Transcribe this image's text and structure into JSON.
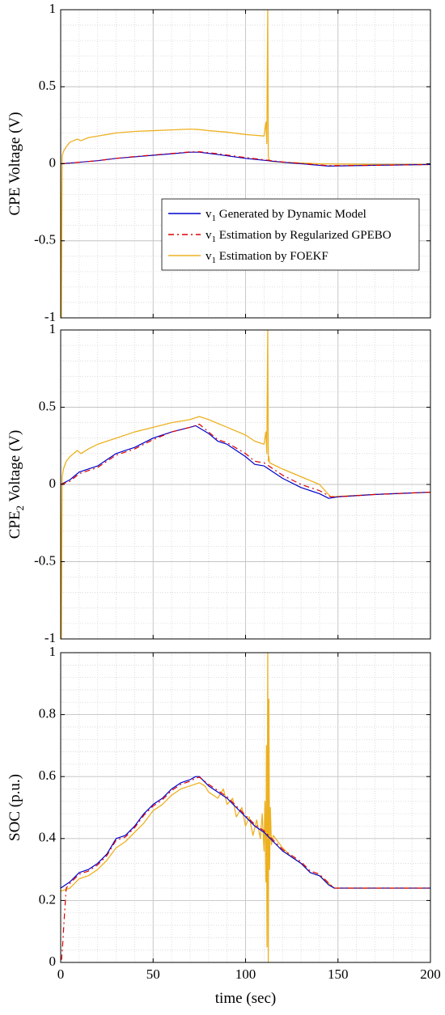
{
  "colors": {
    "model": "#0000cc",
    "gpebo": "#dd0000",
    "foekf": "#edb120",
    "grid": "#d4d4d4",
    "axis": "#000000"
  },
  "chart_data": [
    {
      "type": "line",
      "ylabel": "CPE Voltage (V)",
      "ylabel_sub": "",
      "ylabel_tail": "",
      "xlim": [
        0,
        200
      ],
      "ylim": [
        -1,
        1
      ],
      "yticks": [
        -1,
        -0.5,
        0,
        0.5,
        1
      ],
      "ytick_labels": [
        "-1",
        "-0.5",
        "0",
        "0.5",
        "1"
      ],
      "xticks": [
        0,
        50,
        100,
        150,
        200
      ],
      "xtick_labels": [],
      "grid": "on",
      "legend": {
        "placement": "center-right",
        "entries": [
          {
            "main": "v",
            "sub": "1",
            "rest": " Generated by Dynamic Model",
            "series": 0
          },
          {
            "main": "v",
            "sub": "1",
            "rest": " Estimation by Regularized GPEBO",
            "series": 1
          },
          {
            "main": "v",
            "sub": "1",
            "rest": " Estimation by FOEKF",
            "series": 2
          }
        ]
      },
      "series": [
        {
          "color": "model",
          "dash": "",
          "x": [
            0,
            5,
            20,
            30,
            40,
            50,
            60,
            70,
            75,
            85,
            100,
            120,
            145,
            170,
            200
          ],
          "y": [
            0,
            0.005,
            0.02,
            0.035,
            0.045,
            0.055,
            0.065,
            0.075,
            0.075,
            0.06,
            0.035,
            0.01,
            -0.015,
            -0.01,
            -0.005
          ]
        },
        {
          "color": "gpebo",
          "dash": "7,4,2,4",
          "x": [
            0,
            5,
            20,
            30,
            40,
            50,
            60,
            70,
            75,
            85,
            100,
            120,
            145,
            170,
            200
          ],
          "y": [
            0,
            0.005,
            0.02,
            0.035,
            0.047,
            0.057,
            0.067,
            0.077,
            0.078,
            0.065,
            0.04,
            0.012,
            -0.012,
            -0.01,
            -0.005
          ]
        },
        {
          "color": "foekf",
          "dash": "",
          "x": [
            0,
            0.4,
            0.8,
            1.5,
            3,
            5,
            7,
            9,
            11,
            15,
            20,
            30,
            40,
            50,
            60,
            70,
            75,
            80,
            90,
            100,
            105,
            110,
            111,
            111.5,
            112,
            112.3,
            112.6,
            113,
            114,
            120,
            140,
            170,
            200
          ],
          "y": [
            0,
            -1,
            0.05,
            0.08,
            0.11,
            0.14,
            0.15,
            0.16,
            0.15,
            0.17,
            0.18,
            0.2,
            0.21,
            0.215,
            0.22,
            0.225,
            0.222,
            0.215,
            0.205,
            0.19,
            0.185,
            0.18,
            0.27,
            0.13,
            1,
            0.05,
            0.03,
            0.02,
            0.015,
            0.01,
            0,
            -0.005,
            -0.005
          ]
        }
      ]
    },
    {
      "type": "line",
      "ylabel": "CPE",
      "ylabel_sub": "2",
      "ylabel_tail": " Voltage (V)",
      "xlim": [
        0,
        200
      ],
      "ylim": [
        -1,
        1
      ],
      "yticks": [
        -1,
        -0.5,
        0,
        0.5,
        1
      ],
      "ytick_labels": [
        "-1",
        "-0.5",
        "0",
        "0.5",
        "1"
      ],
      "xticks": [
        0,
        50,
        100,
        150,
        200
      ],
      "xtick_labels": [],
      "grid": "on",
      "series": [
        {
          "color": "model",
          "dash": "",
          "x": [
            0,
            5,
            10,
            20,
            30,
            35,
            40,
            50,
            60,
            70,
            73,
            80,
            85,
            90,
            100,
            105,
            110,
            120,
            130,
            140,
            145,
            150,
            170,
            200
          ],
          "y": [
            0,
            0.03,
            0.08,
            0.12,
            0.2,
            0.22,
            0.24,
            0.3,
            0.34,
            0.37,
            0.38,
            0.33,
            0.28,
            0.26,
            0.18,
            0.13,
            0.12,
            0.04,
            -0.02,
            -0.06,
            -0.09,
            -0.08,
            -0.065,
            -0.05
          ]
        },
        {
          "color": "gpebo",
          "dash": "7,4,2,4",
          "x": [
            0,
            5,
            10,
            20,
            30,
            35,
            40,
            50,
            60,
            70,
            75,
            80,
            85,
            90,
            100,
            105,
            110,
            120,
            130,
            140,
            146,
            150,
            170,
            200
          ],
          "y": [
            0,
            0.02,
            0.07,
            0.11,
            0.19,
            0.21,
            0.23,
            0.29,
            0.34,
            0.37,
            0.39,
            0.34,
            0.29,
            0.27,
            0.2,
            0.15,
            0.14,
            0.06,
            0,
            -0.04,
            -0.08,
            -0.08,
            -0.065,
            -0.05
          ]
        },
        {
          "color": "foekf",
          "dash": "",
          "x": [
            0,
            0.4,
            0.8,
            1.5,
            3,
            5,
            7,
            9,
            11,
            15,
            20,
            30,
            40,
            50,
            60,
            70,
            75,
            80,
            90,
            100,
            105,
            110,
            111,
            111.5,
            112,
            112.3,
            112.6,
            113,
            120,
            140,
            146,
            170,
            200
          ],
          "y": [
            0,
            -1,
            0.05,
            0.1,
            0.15,
            0.18,
            0.2,
            0.22,
            0.2,
            0.23,
            0.26,
            0.3,
            0.34,
            0.37,
            0.4,
            0.42,
            0.44,
            0.42,
            0.37,
            0.32,
            0.28,
            0.26,
            0.34,
            0.2,
            1,
            0.15,
            0.18,
            0.14,
            0.1,
            0,
            -0.08,
            -0.065,
            -0.05
          ]
        }
      ]
    },
    {
      "type": "line",
      "ylabel": "SOC (p.u.)",
      "ylabel_sub": "",
      "ylabel_tail": "",
      "xlabel": "time (sec)",
      "xlim": [
        0,
        200
      ],
      "ylim": [
        0,
        1
      ],
      "yticks": [
        0,
        0.2,
        0.4,
        0.6,
        0.8,
        1
      ],
      "ytick_labels": [
        "0",
        "0.2",
        "0.4",
        "0.6",
        "0.8",
        "1"
      ],
      "xticks": [
        0,
        50,
        100,
        150,
        200
      ],
      "xtick_labels": [
        "0",
        "50",
        "100",
        "150",
        "200"
      ],
      "grid": "on",
      "series": [
        {
          "color": "model",
          "dash": "",
          "x": [
            0,
            5,
            10,
            15,
            20,
            25,
            30,
            35,
            40,
            45,
            50,
            55,
            60,
            65,
            70,
            73,
            75,
            80,
            85,
            90,
            95,
            100,
            105,
            110,
            115,
            120,
            125,
            130,
            135,
            140,
            145,
            148,
            160,
            180,
            200
          ],
          "y": [
            0.24,
            0.26,
            0.29,
            0.3,
            0.32,
            0.35,
            0.4,
            0.41,
            0.44,
            0.48,
            0.51,
            0.53,
            0.56,
            0.58,
            0.59,
            0.6,
            0.6,
            0.57,
            0.55,
            0.53,
            0.5,
            0.47,
            0.44,
            0.42,
            0.39,
            0.36,
            0.34,
            0.32,
            0.29,
            0.28,
            0.25,
            0.24,
            0.24,
            0.24,
            0.24
          ]
        },
        {
          "color": "gpebo",
          "dash": "7,4,2,4",
          "x": [
            0,
            0.5,
            1,
            2,
            3,
            5,
            10,
            15,
            20,
            25,
            30,
            35,
            40,
            45,
            50,
            55,
            60,
            65,
            70,
            73,
            75,
            80,
            85,
            90,
            95,
            100,
            105,
            110,
            115,
            120,
            125,
            130,
            135,
            140,
            146,
            148,
            160,
            180,
            200
          ],
          "y": [
            0.01,
            0.01,
            0.05,
            0.15,
            0.24,
            0.255,
            0.285,
            0.295,
            0.315,
            0.345,
            0.395,
            0.405,
            0.435,
            0.475,
            0.505,
            0.525,
            0.555,
            0.575,
            0.585,
            0.595,
            0.598,
            0.575,
            0.555,
            0.535,
            0.505,
            0.475,
            0.445,
            0.425,
            0.395,
            0.365,
            0.345,
            0.325,
            0.295,
            0.285,
            0.25,
            0.24,
            0.24,
            0.24,
            0.24
          ]
        },
        {
          "color": "foekf",
          "dash": "",
          "x": [
            0,
            5,
            10,
            15,
            20,
            25,
            30,
            35,
            40,
            45,
            50,
            55,
            60,
            65,
            70,
            75,
            78,
            80,
            85,
            88,
            90,
            93,
            95,
            98,
            100,
            102,
            104,
            106,
            108,
            109,
            110,
            110.5,
            111,
            111.3,
            111.6,
            112,
            112.3,
            112.6,
            113,
            113.4,
            114,
            115,
            120,
            125,
            130,
            135,
            140,
            146,
            148,
            160,
            180,
            200
          ],
          "y": [
            0.23,
            0.24,
            0.27,
            0.28,
            0.3,
            0.33,
            0.37,
            0.39,
            0.42,
            0.45,
            0.49,
            0.51,
            0.54,
            0.56,
            0.57,
            0.58,
            0.57,
            0.55,
            0.53,
            0.56,
            0.51,
            0.53,
            0.47,
            0.5,
            0.44,
            0.47,
            0.41,
            0.46,
            0.4,
            0.48,
            0.36,
            0.52,
            0.26,
            0.7,
            0.05,
            1,
            0,
            0.85,
            0.3,
            0.5,
            0.38,
            0.41,
            0.37,
            0.34,
            0.32,
            0.29,
            0.28,
            0.25,
            0.24,
            0.24,
            0.24,
            0.24
          ]
        }
      ]
    }
  ]
}
